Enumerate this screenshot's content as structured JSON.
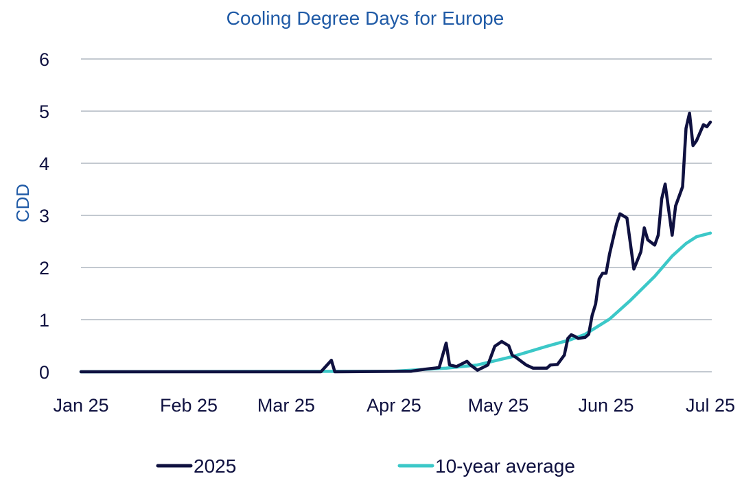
{
  "chart_data": {
    "type": "line",
    "title": "Cooling Degree Days for Europe",
    "xlabel": "",
    "ylabel": "CDD",
    "xlim": [
      "2025-01-01",
      "2025-07-01"
    ],
    "ylim": [
      0,
      6
    ],
    "yticks": [
      "0",
      "1",
      "2",
      "3",
      "4",
      "5",
      "6"
    ],
    "xticks": [
      {
        "date": "2025-01-01",
        "label": "Jan 25"
      },
      {
        "date": "2025-02-01",
        "label": "Feb 25"
      },
      {
        "date": "2025-03-01",
        "label": "Mar 25"
      },
      {
        "date": "2025-04-01",
        "label": "Apr 25"
      },
      {
        "date": "2025-05-01",
        "label": "May 25"
      },
      {
        "date": "2025-06-01",
        "label": "Jun 25"
      },
      {
        "date": "2025-07-01",
        "label": "Jul 25"
      }
    ],
    "grid": "horizontal",
    "legend": "bottom",
    "series": [
      {
        "name": "2025",
        "color": "#0f1140",
        "points": [
          [
            "2025-01-01",
            0
          ],
          [
            "2025-03-11",
            0
          ],
          [
            "2025-03-14",
            0.22
          ],
          [
            "2025-03-15",
            0
          ],
          [
            "2025-04-06",
            0.01
          ],
          [
            "2025-04-10",
            0.05
          ],
          [
            "2025-04-14",
            0.08
          ],
          [
            "2025-04-16",
            0.55
          ],
          [
            "2025-04-17",
            0.13
          ],
          [
            "2025-04-19",
            0.1
          ],
          [
            "2025-04-22",
            0.2
          ],
          [
            "2025-04-23",
            0.13
          ],
          [
            "2025-04-25",
            0.03
          ],
          [
            "2025-04-28",
            0.13
          ],
          [
            "2025-04-30",
            0.49
          ],
          [
            "2025-05-02",
            0.58
          ],
          [
            "2025-05-04",
            0.5
          ],
          [
            "2025-05-05",
            0.32
          ],
          [
            "2025-05-06",
            0.28
          ],
          [
            "2025-05-09",
            0.13
          ],
          [
            "2025-05-11",
            0.07
          ],
          [
            "2025-05-15",
            0.07
          ],
          [
            "2025-05-16",
            0.13
          ],
          [
            "2025-05-18",
            0.14
          ],
          [
            "2025-05-20",
            0.32
          ],
          [
            "2025-05-21",
            0.64
          ],
          [
            "2025-05-22",
            0.71
          ],
          [
            "2025-05-23",
            0.68
          ],
          [
            "2025-05-24",
            0.64
          ],
          [
            "2025-05-26",
            0.66
          ],
          [
            "2025-05-27",
            0.72
          ],
          [
            "2025-05-28",
            1.08
          ],
          [
            "2025-05-29",
            1.3
          ],
          [
            "2025-05-30",
            1.78
          ],
          [
            "2025-05-31",
            1.89
          ],
          [
            "2025-06-01",
            1.89
          ],
          [
            "2025-06-02",
            2.26
          ],
          [
            "2025-06-04",
            2.83
          ],
          [
            "2025-06-05",
            3.03
          ],
          [
            "2025-06-06",
            2.99
          ],
          [
            "2025-06-07",
            2.95
          ],
          [
            "2025-06-09",
            1.97
          ],
          [
            "2025-06-11",
            2.3
          ],
          [
            "2025-06-12",
            2.76
          ],
          [
            "2025-06-13",
            2.53
          ],
          [
            "2025-06-15",
            2.43
          ],
          [
            "2025-06-16",
            2.62
          ],
          [
            "2025-06-17",
            3.32
          ],
          [
            "2025-06-18",
            3.6
          ],
          [
            "2025-06-20",
            2.62
          ],
          [
            "2025-06-21",
            3.18
          ],
          [
            "2025-06-23",
            3.55
          ],
          [
            "2025-06-24",
            4.67
          ],
          [
            "2025-06-25",
            4.96
          ],
          [
            "2025-06-26",
            4.34
          ],
          [
            "2025-06-27",
            4.43
          ],
          [
            "2025-06-29",
            4.74
          ],
          [
            "2025-06-30",
            4.7
          ],
          [
            "2025-07-01",
            4.79
          ]
        ]
      },
      {
        "name": "10-year average",
        "color": "#3cc8c8",
        "points": [
          [
            "2025-01-01",
            0
          ],
          [
            "2025-04-01",
            0.01
          ],
          [
            "2025-04-16",
            0.07
          ],
          [
            "2025-04-25",
            0.13
          ],
          [
            "2025-05-05",
            0.29
          ],
          [
            "2025-05-15",
            0.49
          ],
          [
            "2025-05-22",
            0.62
          ],
          [
            "2025-05-26",
            0.72
          ],
          [
            "2025-06-02",
            1.01
          ],
          [
            "2025-06-08",
            1.37
          ],
          [
            "2025-06-15",
            1.83
          ],
          [
            "2025-06-20",
            2.22
          ],
          [
            "2025-06-24",
            2.46
          ],
          [
            "2025-06-27",
            2.59
          ],
          [
            "2025-07-01",
            2.66
          ]
        ]
      }
    ]
  }
}
